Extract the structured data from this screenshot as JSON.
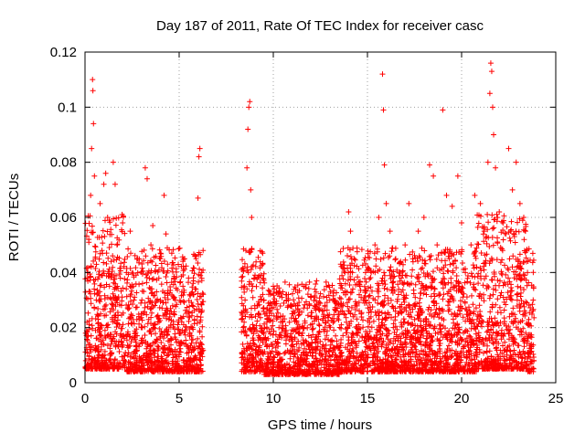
{
  "chart_data": {
    "type": "scatter",
    "title": "Day 187 of 2011, Rate Of TEC Index for receiver casc",
    "xlabel": "GPS time / hours",
    "ylabel": "ROTI / TECUs",
    "xlim": [
      0,
      25
    ],
    "ylim": [
      0,
      0.12
    ],
    "x_ticks": [
      "0",
      "5",
      "10",
      "15",
      "20",
      "25"
    ],
    "y_ticks": [
      "0",
      "0.02",
      "0.04",
      "0.06",
      "0.08",
      "0.1",
      "0.12"
    ],
    "x_tick_values": [
      0,
      5,
      10,
      15,
      20,
      25
    ],
    "y_tick_values": [
      0,
      0.02,
      0.04,
      0.06,
      0.08,
      0.1,
      0.12
    ],
    "grid": true,
    "legend": "none",
    "marker": "plus",
    "color": "#ff0000",
    "data_gap_hours": [
      6.3,
      8.3
    ],
    "series": [
      {
        "name": "ROTI",
        "points": [
          [
            0.1,
            0.012
          ],
          [
            0.15,
            0.04
          ],
          [
            0.2,
            0.052
          ],
          [
            0.3,
            0.068
          ],
          [
            0.35,
            0.085
          ],
          [
            0.4,
            0.11
          ],
          [
            0.42,
            0.106
          ],
          [
            0.45,
            0.094
          ],
          [
            0.5,
            0.075
          ],
          [
            0.55,
            0.045
          ],
          [
            0.6,
            0.03
          ],
          [
            0.7,
            0.02
          ],
          [
            0.8,
            0.065
          ],
          [
            0.9,
            0.048
          ],
          [
            1.0,
            0.072
          ],
          [
            1.1,
            0.076
          ],
          [
            1.2,
            0.06
          ],
          [
            1.3,
            0.035
          ],
          [
            1.5,
            0.08
          ],
          [
            1.6,
            0.072
          ],
          [
            1.7,
            0.05
          ],
          [
            1.8,
            0.015
          ],
          [
            2.0,
            0.058
          ],
          [
            2.2,
            0.04
          ],
          [
            2.4,
            0.055
          ],
          [
            2.6,
            0.03
          ],
          [
            2.8,
            0.045
          ],
          [
            3.0,
            0.02
          ],
          [
            3.2,
            0.078
          ],
          [
            3.3,
            0.074
          ],
          [
            3.5,
            0.05
          ],
          [
            3.6,
            0.057
          ],
          [
            3.8,
            0.033
          ],
          [
            4.0,
            0.045
          ],
          [
            4.2,
            0.068
          ],
          [
            4.3,
            0.054
          ],
          [
            4.5,
            0.025
          ],
          [
            4.8,
            0.03
          ],
          [
            5.0,
            0.018
          ],
          [
            5.2,
            0.035
          ],
          [
            5.5,
            0.038
          ],
          [
            5.7,
            0.028
          ],
          [
            5.9,
            0.045
          ],
          [
            6.0,
            0.067
          ],
          [
            6.05,
            0.082
          ],
          [
            6.1,
            0.085
          ],
          [
            6.2,
            0.04
          ],
          [
            8.4,
            0.02
          ],
          [
            8.5,
            0.03
          ],
          [
            8.6,
            0.078
          ],
          [
            8.65,
            0.092
          ],
          [
            8.7,
            0.1
          ],
          [
            8.75,
            0.102
          ],
          [
            8.8,
            0.07
          ],
          [
            8.85,
            0.06
          ],
          [
            8.9,
            0.035
          ],
          [
            9.2,
            0.025
          ],
          [
            9.5,
            0.03
          ],
          [
            9.8,
            0.028
          ],
          [
            10.0,
            0.035
          ],
          [
            10.3,
            0.02
          ],
          [
            10.5,
            0.033
          ],
          [
            10.8,
            0.03
          ],
          [
            11.0,
            0.025
          ],
          [
            11.3,
            0.028
          ],
          [
            11.6,
            0.02
          ],
          [
            12.0,
            0.031
          ],
          [
            12.3,
            0.037
          ],
          [
            12.6,
            0.026
          ],
          [
            13.0,
            0.03
          ],
          [
            13.4,
            0.027
          ],
          [
            13.8,
            0.04
          ],
          [
            14.0,
            0.062
          ],
          [
            14.1,
            0.055
          ],
          [
            14.3,
            0.045
          ],
          [
            14.6,
            0.035
          ],
          [
            14.9,
            0.03
          ],
          [
            15.2,
            0.04
          ],
          [
            15.4,
            0.05
          ],
          [
            15.6,
            0.06
          ],
          [
            15.8,
            0.112
          ],
          [
            15.85,
            0.099
          ],
          [
            15.9,
            0.079
          ],
          [
            16.0,
            0.065
          ],
          [
            16.2,
            0.055
          ],
          [
            16.5,
            0.045
          ],
          [
            16.8,
            0.038
          ],
          [
            17.0,
            0.05
          ],
          [
            17.2,
            0.065
          ],
          [
            17.4,
            0.045
          ],
          [
            17.7,
            0.055
          ],
          [
            18.0,
            0.06
          ],
          [
            18.3,
            0.079
          ],
          [
            18.5,
            0.075
          ],
          [
            18.7,
            0.05
          ],
          [
            19.0,
            0.099
          ],
          [
            19.2,
            0.068
          ],
          [
            19.5,
            0.064
          ],
          [
            19.8,
            0.075
          ],
          [
            20.0,
            0.058
          ],
          [
            20.2,
            0.04
          ],
          [
            20.5,
            0.05
          ],
          [
            20.7,
            0.068
          ],
          [
            21.0,
            0.065
          ],
          [
            21.2,
            0.055
          ],
          [
            21.4,
            0.08
          ],
          [
            21.5,
            0.105
          ],
          [
            21.55,
            0.116
          ],
          [
            21.6,
            0.113
          ],
          [
            21.65,
            0.1
          ],
          [
            21.7,
            0.09
          ],
          [
            21.8,
            0.078
          ],
          [
            22.0,
            0.062
          ],
          [
            22.2,
            0.058
          ],
          [
            22.5,
            0.085
          ],
          [
            22.7,
            0.07
          ],
          [
            22.9,
            0.08
          ],
          [
            23.1,
            0.065
          ],
          [
            23.3,
            0.06
          ],
          [
            23.5,
            0.04
          ],
          [
            23.8,
            0.03
          ]
        ]
      }
    ]
  }
}
